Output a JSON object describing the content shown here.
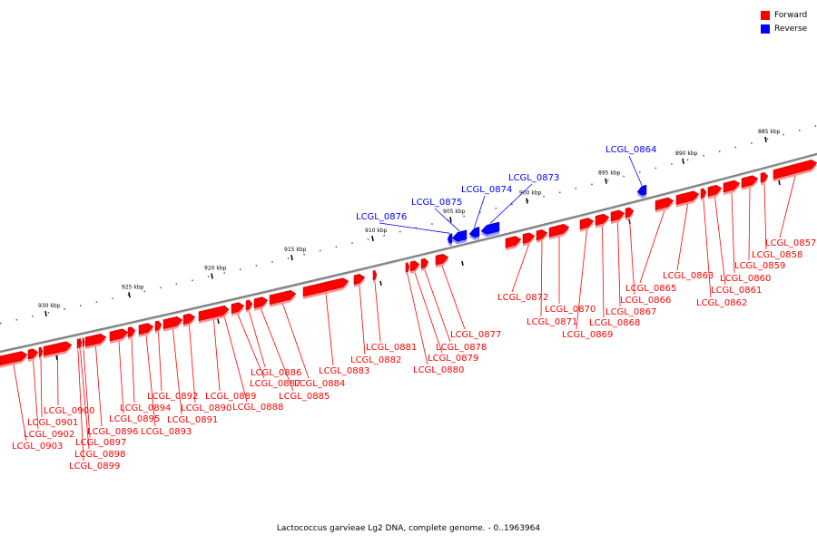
{
  "legend": {
    "items": [
      {
        "label": "Forward",
        "color": "#ff0000"
      },
      {
        "label": "Reverse",
        "color": "#0000ff"
      }
    ]
  },
  "caption": "Lactococcus garvieae Lg2 DNA, complete genome. - 0..1963964",
  "colors": {
    "forward": "#ff0000",
    "reverse": "#0000ff",
    "backbone": "#808080",
    "tick": "#000000"
  },
  "ruler": {
    "unit_labels": [
      "930 kbp",
      "925 kbp",
      "920 kbp",
      "915 kbp",
      "910 kbp",
      "905 kbp",
      "900 kbp",
      "895 kbp",
      "890 kbp",
      "885 kbp"
    ]
  },
  "features": [
    {
      "label": "LCGL_0857",
      "strand": "forward"
    },
    {
      "label": "LCGL_0858",
      "strand": "forward"
    },
    {
      "label": "LCGL_0859",
      "strand": "forward"
    },
    {
      "label": "LCGL_0860",
      "strand": "forward"
    },
    {
      "label": "LCGL_0861",
      "strand": "forward"
    },
    {
      "label": "LCGL_0862",
      "strand": "forward"
    },
    {
      "label": "LCGL_0863",
      "strand": "forward"
    },
    {
      "label": "LCGL_0864",
      "strand": "reverse"
    },
    {
      "label": "LCGL_0865",
      "strand": "forward"
    },
    {
      "label": "LCGL_0866",
      "strand": "forward"
    },
    {
      "label": "LCGL_0867",
      "strand": "forward"
    },
    {
      "label": "LCGL_0868",
      "strand": "forward"
    },
    {
      "label": "LCGL_0869",
      "strand": "forward"
    },
    {
      "label": "LCGL_0870",
      "strand": "forward"
    },
    {
      "label": "LCGL_0871",
      "strand": "forward"
    },
    {
      "label": "LCGL_0872",
      "strand": "forward"
    },
    {
      "label": "LCGL_0873",
      "strand": "reverse"
    },
    {
      "label": "LCGL_0874",
      "strand": "reverse"
    },
    {
      "label": "LCGL_0875",
      "strand": "reverse"
    },
    {
      "label": "LCGL_0876",
      "strand": "reverse"
    },
    {
      "label": "LCGL_0877",
      "strand": "forward"
    },
    {
      "label": "LCGL_0878",
      "strand": "forward"
    },
    {
      "label": "LCGL_0879",
      "strand": "forward"
    },
    {
      "label": "LCGL_0880",
      "strand": "forward"
    },
    {
      "label": "LCGL_0881",
      "strand": "forward"
    },
    {
      "label": "LCGL_0882",
      "strand": "forward"
    },
    {
      "label": "LCGL_0883",
      "strand": "forward"
    },
    {
      "label": "LCGL_0884",
      "strand": "forward"
    },
    {
      "label": "LCGL_0885",
      "strand": "forward"
    },
    {
      "label": "LCGL_0886",
      "strand": "forward"
    },
    {
      "label": "LCGL_0887",
      "strand": "forward"
    },
    {
      "label": "LCGL_0888",
      "strand": "forward"
    },
    {
      "label": "LCGL_0889",
      "strand": "forward"
    },
    {
      "label": "LCGL_0890",
      "strand": "forward"
    },
    {
      "label": "LCGL_0891",
      "strand": "forward"
    },
    {
      "label": "LCGL_0892",
      "strand": "forward"
    },
    {
      "label": "LCGL_0893",
      "strand": "forward"
    },
    {
      "label": "LCGL_0894",
      "strand": "forward"
    },
    {
      "label": "LCGL_0895",
      "strand": "forward"
    },
    {
      "label": "LCGL_0896",
      "strand": "forward"
    },
    {
      "label": "LCGL_0897",
      "strand": "forward"
    },
    {
      "label": "LCGL_0898",
      "strand": "forward"
    },
    {
      "label": "LCGL_0899",
      "strand": "forward"
    },
    {
      "label": "LCGL_0900",
      "strand": "forward"
    },
    {
      "label": "LCGL_0901",
      "strand": "forward"
    },
    {
      "label": "LCGL_0902",
      "strand": "forward"
    },
    {
      "label": "LCGL_0903",
      "strand": "forward"
    }
  ]
}
